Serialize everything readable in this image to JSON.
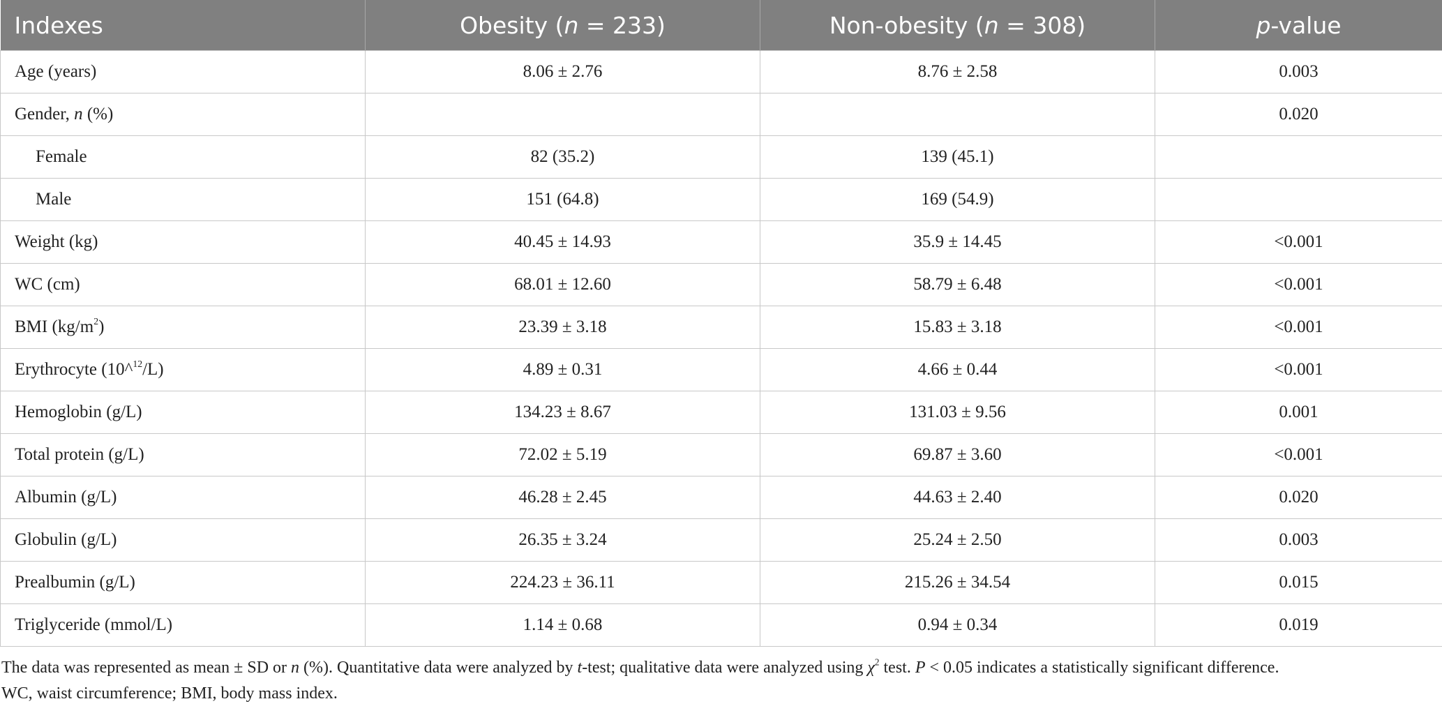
{
  "table": {
    "header": [
      "Indexes",
      [
        "Obesity (",
        "n",
        " = 233)"
      ],
      [
        "Non-obesity (",
        "n",
        " = 308)"
      ],
      [
        "p",
        "-value"
      ]
    ],
    "rows": [
      [
        "Age (years)",
        "8.06 ± 2.76",
        "8.76 ± 2.58",
        "0.003"
      ],
      [
        [
          "Gender, ",
          "n",
          " (%)"
        ],
        null,
        null,
        "0.020"
      ],
      [
        "Female",
        "82 (35.2)",
        "139 (45.1)",
        null
      ],
      [
        "Male",
        "151 (64.8)",
        "169 (54.9)",
        null
      ],
      [
        "Weight (kg)",
        "40.45 ± 14.93",
        "35.9 ± 14.45",
        "<0.001"
      ],
      [
        "WC (cm)",
        "68.01 ± 12.60",
        "58.79 ± 6.48",
        "<0.001"
      ],
      [
        [
          "BMI (kg/m",
          "2",
          ")"
        ],
        "23.39 ± 3.18",
        "15.83 ± 3.18",
        "<0.001"
      ],
      [
        [
          "Erythrocyte (10^",
          "12",
          "/L)"
        ],
        "4.89 ± 0.31",
        "4.66 ± 0.44",
        "<0.001"
      ],
      [
        "Hemoglobin (g/L)",
        "134.23 ± 8.67",
        "131.03 ± 9.56",
        "0.001"
      ],
      [
        "Total protein (g/L)",
        "72.02 ± 5.19",
        "69.87 ± 3.60",
        "<0.001"
      ],
      [
        "Albumin (g/L)",
        "46.28 ± 2.45",
        "44.63 ± 2.40",
        "0.020"
      ],
      [
        "Globulin (g/L)",
        "26.35 ± 3.24",
        "25.24 ± 2.50",
        "0.003"
      ],
      [
        "Prealbumin (g/L)",
        "224.23 ± 36.11",
        "215.26 ± 34.54",
        "0.015"
      ],
      [
        "Triglyceride (mmol/L)",
        "1.14 ± 0.68",
        "0.94 ± 0.34",
        "0.019"
      ]
    ]
  },
  "footnote": [
    [
      "The data was represented as mean ± SD or ",
      "n",
      " (%). Quantitative data were analyzed by ",
      "t",
      "-test; qualitative data were analyzed using ",
      "χ",
      "2",
      " test. ",
      "P",
      " < 0.05 indicates a statistically significant difference."
    ],
    "WC, waist circumference; BMI, body mass index."
  ]
}
